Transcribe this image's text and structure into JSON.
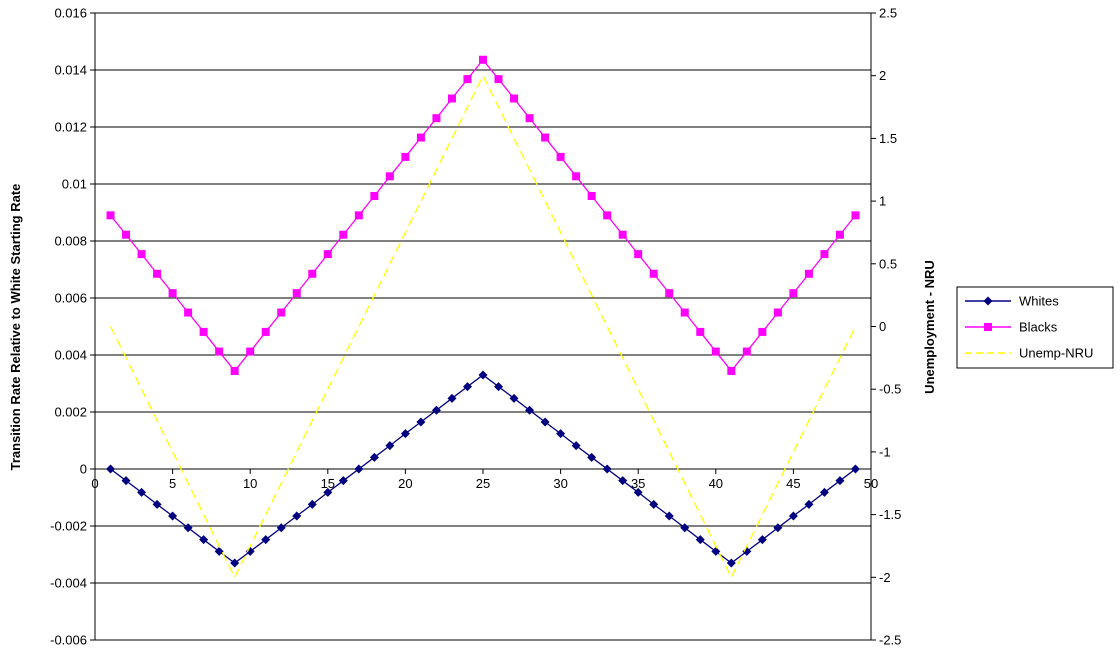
{
  "chart_data": {
    "type": "line",
    "title": "",
    "x": [
      1,
      2,
      3,
      4,
      5,
      6,
      7,
      8,
      9,
      10,
      11,
      12,
      13,
      14,
      15,
      16,
      17,
      18,
      19,
      20,
      21,
      22,
      23,
      24,
      25,
      26,
      27,
      28,
      29,
      30,
      31,
      32,
      33,
      34,
      35,
      36,
      37,
      38,
      39,
      40,
      41,
      42,
      43,
      44,
      45,
      46,
      47,
      48,
      49
    ],
    "xlim": [
      0,
      50
    ],
    "xticks": [
      0,
      5,
      10,
      15,
      20,
      25,
      30,
      35,
      40,
      45,
      50
    ],
    "x_tick_labels": [
      "0",
      "5",
      "10",
      "15",
      "20",
      "25",
      "30",
      "35",
      "40",
      "45",
      "50"
    ],
    "xlabel": "",
    "y_left": {
      "label": "Transition Rate Relative to White Starting Rate",
      "lim": [
        -0.006,
        0.016
      ],
      "ticks": [
        -0.006,
        -0.004,
        -0.002,
        0,
        0.002,
        0.004,
        0.006,
        0.008,
        0.01,
        0.012,
        0.014,
        0.016
      ],
      "tick_labels": [
        "-0.006",
        "-0.004",
        "-0.002",
        "0",
        "0.002",
        "0.004",
        "0.006",
        "0.008",
        "0.01",
        "0.012",
        "0.014",
        "0.016"
      ]
    },
    "y_right": {
      "label": "Unemployment - NRU",
      "lim": [
        -2.5,
        2.5
      ],
      "ticks": [
        -2.5,
        -2,
        -1.5,
        -1,
        -0.5,
        0,
        0.5,
        1,
        1.5,
        2,
        2.5
      ],
      "tick_labels": [
        "-2.5",
        "-2",
        "-1.5",
        "-1",
        "-0.5",
        "0",
        "0.5",
        "1",
        "1.5",
        "2",
        "2.5"
      ]
    },
    "grid": "horizontal major (left axis)",
    "legend_position": "right",
    "series": [
      {
        "name": "Whites",
        "axis": "left",
        "color": "#000080",
        "marker": "diamond",
        "line_style": "solid",
        "values": [
          0,
          -0.00041,
          -0.00082,
          -0.00124,
          -0.00165,
          -0.00206,
          -0.00248,
          -0.00289,
          -0.0033,
          -0.00289,
          -0.00248,
          -0.00206,
          -0.00165,
          -0.00124,
          -0.00082,
          -0.00041,
          0,
          0.00041,
          0.00082,
          0.00124,
          0.00165,
          0.00206,
          0.00248,
          0.00289,
          0.0033,
          0.00289,
          0.00248,
          0.00206,
          0.00165,
          0.00124,
          0.00082,
          0.00041,
          0,
          -0.00041,
          -0.00082,
          -0.00124,
          -0.00165,
          -0.00206,
          -0.00248,
          -0.00289,
          -0.0033,
          -0.00289,
          -0.00248,
          -0.00206,
          -0.00165,
          -0.00124,
          -0.00082,
          -0.00041,
          0
        ]
      },
      {
        "name": "Blacks",
        "axis": "left",
        "color": "#ff00ff",
        "marker": "square",
        "line_style": "solid",
        "values": [
          0.0089,
          0.00822,
          0.00754,
          0.00685,
          0.00617,
          0.00549,
          0.00481,
          0.00412,
          0.00344,
          0.00412,
          0.00481,
          0.00549,
          0.00617,
          0.00685,
          0.00754,
          0.00822,
          0.0089,
          0.00958,
          0.01027,
          0.01095,
          0.01163,
          0.01231,
          0.013,
          0.01368,
          0.01436,
          0.01368,
          0.013,
          0.01231,
          0.01163,
          0.01095,
          0.01027,
          0.00958,
          0.0089,
          0.00822,
          0.00754,
          0.00685,
          0.00617,
          0.00549,
          0.00481,
          0.00412,
          0.00344,
          0.00412,
          0.00481,
          0.00549,
          0.00617,
          0.00685,
          0.00754,
          0.00822,
          0.0089
        ]
      },
      {
        "name": "Unemp-NRU",
        "axis": "right",
        "color": "#ffff00",
        "marker": "none",
        "line_style": "dashed",
        "values": [
          0,
          -0.25,
          -0.5,
          -0.75,
          -1,
          -1.25,
          -1.5,
          -1.75,
          -2,
          -1.75,
          -1.5,
          -1.25,
          -1,
          -0.75,
          -0.5,
          -0.25,
          0,
          0.25,
          0.5,
          0.75,
          1,
          1.25,
          1.5,
          1.75,
          2,
          1.75,
          1.5,
          1.25,
          1,
          0.75,
          0.5,
          0.25,
          0,
          -0.25,
          -0.5,
          -0.75,
          -1,
          -1.25,
          -1.5,
          -1.75,
          -2,
          -1.75,
          -1.5,
          -1.25,
          -1,
          -0.75,
          -0.5,
          -0.25,
          0
        ]
      }
    ]
  }
}
